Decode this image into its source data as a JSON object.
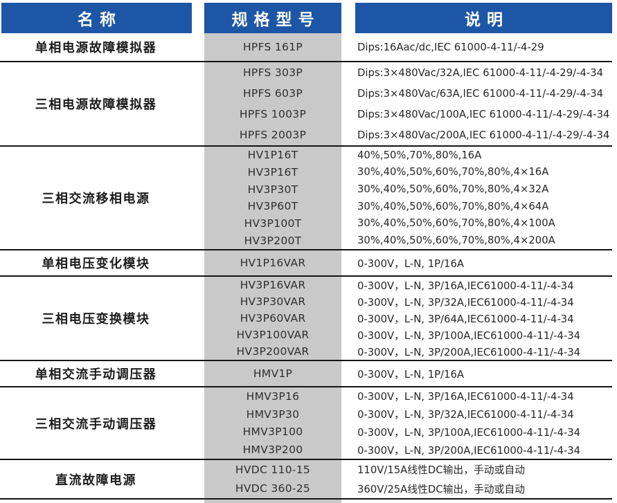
{
  "header": {
    "col1": "名称",
    "col2": "规格型号",
    "col3": "说明"
  },
  "colors": {
    "header_blue": "#1d56a6",
    "model_column_gray": "#c9c9c9",
    "separator_line": "#141414"
  },
  "groups": [
    {
      "name": "单相电源故障模拟器",
      "rows": [
        {
          "model": "HPFS 161P",
          "desc": "Dips:16Aac/dc,IEC 61000-4-11/-4-29"
        }
      ]
    },
    {
      "name": "三相电源故障模拟器",
      "rows": [
        {
          "model": "HPFS 303P",
          "desc": "Dips:3×480Vac/32A,IEC 61000-4-11/-4-29/-4-34"
        },
        {
          "model": "HPFS 603P",
          "desc": "Dips:3×480Vac/63A,IEC 61000-4-11/-4-29/-4-34"
        },
        {
          "model": "HPFS 1003P",
          "desc": "Dips:3×480Vac/100A,IEC 61000-4-11/-4-29/-4-34"
        },
        {
          "model": "HPFS 2003P",
          "desc": "Dips:3×480Vac/200A,IEC 61000-4-11/-4-29/-4-34"
        }
      ]
    },
    {
      "name": "三相交流移相电源",
      "rows": [
        {
          "model": "HV1P16T",
          "desc": "40%,50%,70%,80%,16A"
        },
        {
          "model": "HV3P16T",
          "desc": "30%,40%,50%,60%,70%,80%,4×16A"
        },
        {
          "model": "HV3P30T",
          "desc": "30%,40%,50%,60%,70%,80%,4×32A"
        },
        {
          "model": "HV3P60T",
          "desc": "30%,40%,50%,60%,70%,80%,4×64A"
        },
        {
          "model": "HV3P100T",
          "desc": "30%,40%,50%,60%,70%,80%,4×100A"
        },
        {
          "model": "HV3P200T",
          "desc": "30%,40%,50%,60%,70%,80%,4×200A"
        }
      ]
    },
    {
      "name": "单相电压变化模块",
      "rows": [
        {
          "model": "HV1P16VAR",
          "desc": "0-300V，L-N, 1P/16A"
        }
      ]
    },
    {
      "name": "三相电压变换模块",
      "rows": [
        {
          "model": "HV3P16VAR",
          "desc": "0-300V，L-N, 3P/16A,IEC61000-4-11/-4-34"
        },
        {
          "model": "HV3P30VAR",
          "desc": "0-300V，L-N, 3P/32A,IEC61000-4-11/-4-34"
        },
        {
          "model": "HV3P60VAR",
          "desc": "0-300V，L-N, 3P/64A,IEC61000-4-11/-4-34"
        },
        {
          "model": "HV3P100VAR",
          "desc": "0-300V，L-N, 3P/100A,IEC61000-4-11/-4-34"
        },
        {
          "model": "HV3P200VAR",
          "desc": "0-300V，L-N, 3P/200A,IEC61000-4-11/-4-34"
        }
      ]
    },
    {
      "name": "单相交流手动调压器",
      "rows": [
        {
          "model": "HMV1P",
          "desc": "0-300V，L-N, 1P/16A"
        }
      ]
    },
    {
      "name": "三相交流手动调压器",
      "rows": [
        {
          "model": "HMV3P16",
          "desc": "0-300V，L-N, 3P/16A,IEC61000-4-11/-4-34"
        },
        {
          "model": "HMV3P30",
          "desc": "0-300V，L-N, 3P/32A,IEC61000-4-11/-4-34"
        },
        {
          "model": "HMV3P100",
          "desc": "0-300V，L-N, 3P/100A,IEC61000-4-11/-4-34"
        },
        {
          "model": "HMV3P200",
          "desc": "0-300V，L-N, 3P/200A,IEC61000-4-11/-4-34"
        }
      ]
    },
    {
      "name": "直流故障电源",
      "rows": [
        {
          "model": "HVDC 110-15",
          "desc": "110V/15A线性DC输出，手动或自动"
        },
        {
          "model": "HVDC 360-25",
          "desc": "360V/25A线性DC输出，手动或自动"
        }
      ]
    }
  ]
}
